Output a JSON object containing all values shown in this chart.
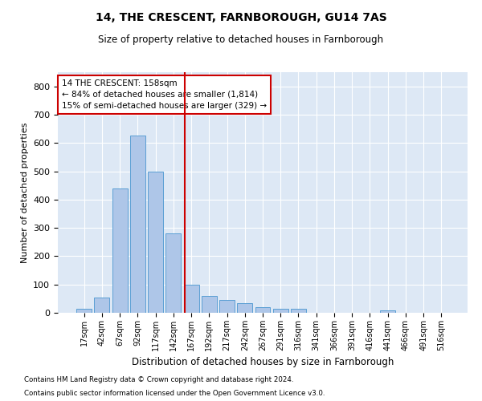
{
  "title": "14, THE CRESCENT, FARNBOROUGH, GU14 7AS",
  "subtitle": "Size of property relative to detached houses in Farnborough",
  "xlabel": "Distribution of detached houses by size in Farnborough",
  "ylabel": "Number of detached properties",
  "footnote1": "Contains HM Land Registry data © Crown copyright and database right 2024.",
  "footnote2": "Contains public sector information licensed under the Open Government Licence v3.0.",
  "bar_labels": [
    "17sqm",
    "42sqm",
    "67sqm",
    "92sqm",
    "117sqm",
    "142sqm",
    "167sqm",
    "192sqm",
    "217sqm",
    "242sqm",
    "267sqm",
    "291sqm",
    "316sqm",
    "341sqm",
    "366sqm",
    "391sqm",
    "416sqm",
    "441sqm",
    "466sqm",
    "491sqm",
    "516sqm"
  ],
  "bar_values": [
    15,
    55,
    440,
    625,
    500,
    280,
    100,
    60,
    45,
    35,
    20,
    15,
    13,
    0,
    0,
    0,
    0,
    8,
    0,
    0,
    0
  ],
  "bar_color": "#aec6e8",
  "bar_edge_color": "#5a9fd4",
  "bg_color": "#dde8f5",
  "grid_color": "#ffffff",
  "vline_color": "#cc0000",
  "annotation_text": "14 THE CRESCENT: 158sqm\n← 84% of detached houses are smaller (1,814)\n15% of semi-detached houses are larger (329) →",
  "annotation_box_color": "#ffffff",
  "annotation_box_edge": "#cc0000",
  "ylim": [
    0,
    850
  ],
  "yticks": [
    0,
    100,
    200,
    300,
    400,
    500,
    600,
    700,
    800
  ]
}
